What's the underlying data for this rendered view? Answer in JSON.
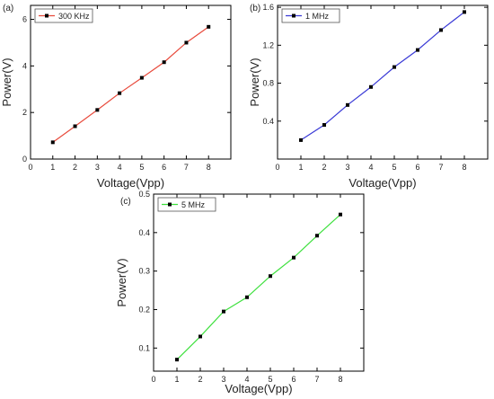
{
  "chart_data": [
    {
      "type": "line",
      "panel_label": "(a)",
      "xlabel": "Voltage(Vpp)",
      "ylabel": "Power(V)",
      "xlim": [
        0,
        9
      ],
      "ylim": [
        0,
        6.6
      ],
      "xticks": [
        0,
        1,
        2,
        3,
        4,
        5,
        6,
        7,
        8
      ],
      "yticks": [
        0,
        2,
        4,
        6
      ],
      "x": [
        1,
        2,
        3,
        4,
        5,
        6,
        7,
        8
      ],
      "grid": false,
      "legend_position": "top-left",
      "series": [
        {
          "name": "300 KHz",
          "color": "#e84a3c",
          "values": [
            0.72,
            1.41,
            2.11,
            2.83,
            3.49,
            4.16,
            5.0,
            5.68
          ]
        }
      ]
    },
    {
      "type": "line",
      "panel_label": "(b)",
      "xlabel": "Voltage(Vpp)",
      "ylabel": "Power(V)",
      "xlim": [
        0,
        9
      ],
      "ylim": [
        0,
        1.62
      ],
      "xticks": [
        0,
        1,
        2,
        3,
        4,
        5,
        6,
        7,
        8
      ],
      "yticks": [
        0.4,
        0.8,
        1.2,
        1.6
      ],
      "ytick_labels": [
        "0.4",
        "0.8",
        "1.2",
        "1.6"
      ],
      "x": [
        1,
        2,
        3,
        4,
        5,
        6,
        7,
        8
      ],
      "grid": false,
      "legend_position": "top-left",
      "series": [
        {
          "name": "1 MHz",
          "color": "#3a3ad6",
          "values": [
            0.2,
            0.36,
            0.57,
            0.76,
            0.97,
            1.15,
            1.36,
            1.55
          ]
        }
      ]
    },
    {
      "type": "line",
      "panel_label": "(c)",
      "xlabel": "Voltage(Vpp)",
      "ylabel": "Power(V)",
      "xlim": [
        0,
        9
      ],
      "ylim": [
        0.04,
        0.5
      ],
      "xticks": [
        0,
        1,
        2,
        3,
        4,
        5,
        6,
        7,
        8
      ],
      "yticks": [
        0.1,
        0.2,
        0.3,
        0.4,
        0.5
      ],
      "ytick_labels": [
        "0.1",
        "0.2",
        "0.3",
        "0.4",
        "0.5"
      ],
      "x": [
        1,
        2,
        3,
        4,
        5,
        6,
        7,
        8
      ],
      "grid": false,
      "legend_position": "top-left",
      "series": [
        {
          "name": "5 MHz",
          "color": "#3ee03e",
          "values": [
            0.07,
            0.13,
            0.195,
            0.232,
            0.287,
            0.335,
            0.392,
            0.447
          ]
        }
      ]
    }
  ]
}
